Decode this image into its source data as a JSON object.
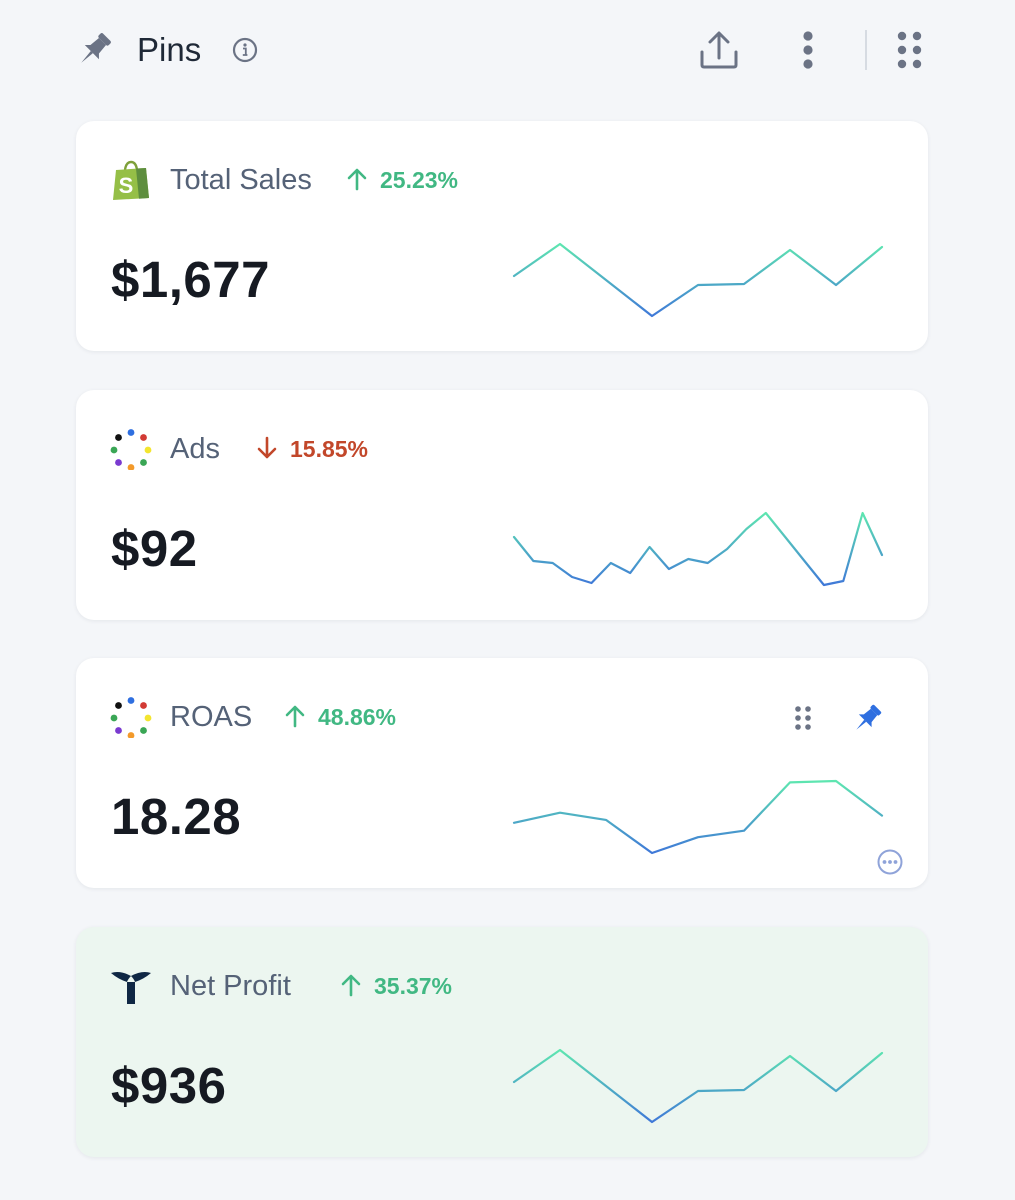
{
  "header": {
    "title": "Pins",
    "icons": [
      "pin-icon",
      "info-icon",
      "upload-icon",
      "more-vertical-icon",
      "grid-dots-icon"
    ]
  },
  "colors": {
    "positive": "#41b883",
    "negative": "#c2472a",
    "spark_top": "#5ee6b0",
    "spark_bottom": "#3f78d8",
    "pin_active": "#2f6fe0",
    "highlight_card_bg": "#ecf6f0"
  },
  "cards": [
    {
      "title": "Total Sales",
      "brand_icon": "shopify-bag-icon",
      "delta": "25.23%",
      "direction": "up",
      "value": "$1,677",
      "sparkline": [
        40,
        72,
        36,
        0,
        31,
        32,
        66,
        31,
        69
      ]
    },
    {
      "title": "Ads",
      "brand_icon": "colored-dots-ring-icon",
      "delta": "15.85%",
      "direction": "down",
      "value": "$92",
      "sparkline": [
        68,
        56,
        55,
        48,
        45,
        55,
        50,
        63,
        52,
        57,
        55,
        62,
        72,
        80,
        68,
        56,
        44,
        46,
        80,
        59
      ]
    },
    {
      "title": "ROAS",
      "brand_icon": "colored-dots-ring-icon",
      "delta": "48.86%",
      "direction": "up",
      "value": "18.28",
      "sparkline": [
        42,
        56,
        46,
        0,
        22,
        31,
        98,
        100,
        52
      ],
      "icons": [
        "drag-handle-icon",
        "pin-icon",
        "more-horizontal-icon"
      ]
    },
    {
      "title": "Net Profit",
      "brand_icon": "whale-tail-logo-icon",
      "delta": "35.37%",
      "direction": "up",
      "value": "$936",
      "sparkline": [
        40,
        72,
        36,
        0,
        31,
        32,
        66,
        31,
        69
      ]
    }
  ]
}
